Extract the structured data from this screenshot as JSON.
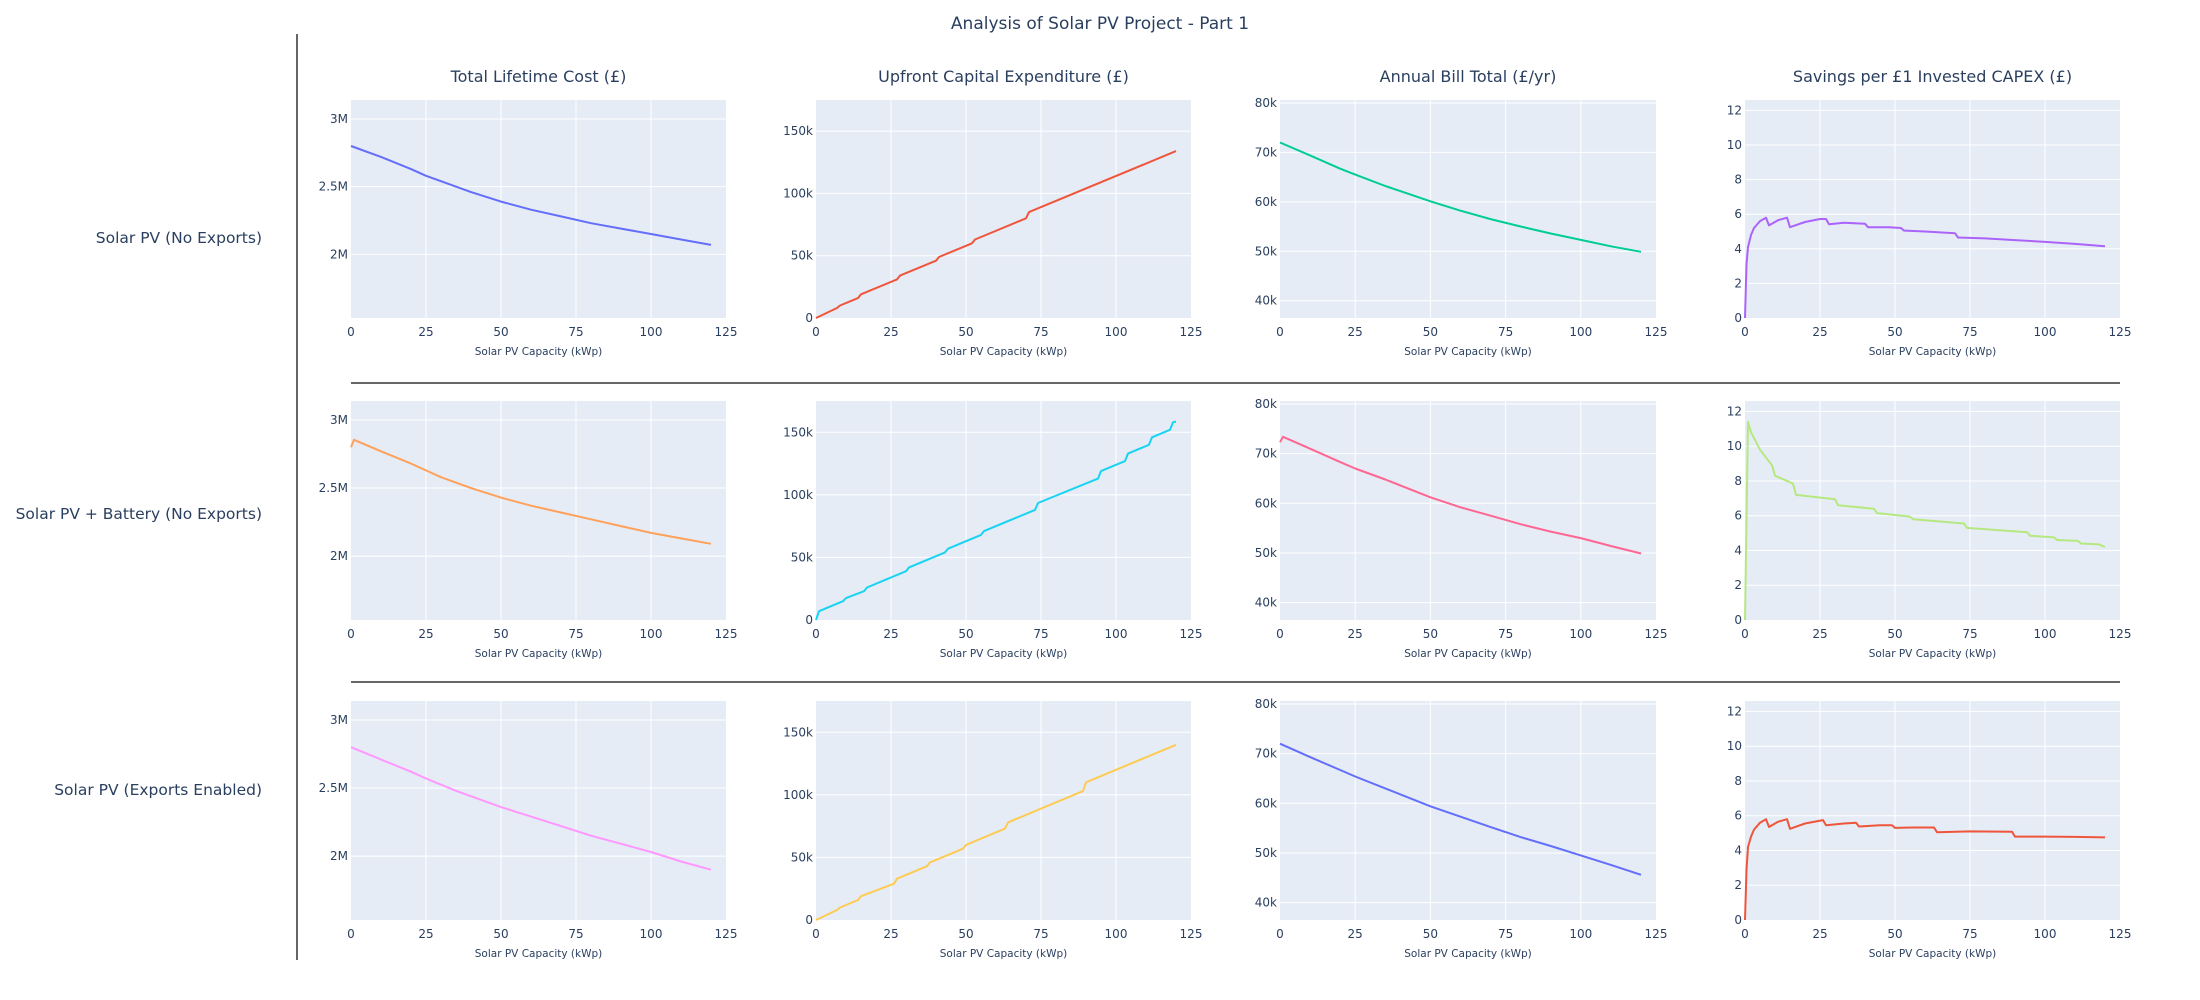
{
  "title": "Analysis of Solar PV Project - Part 1",
  "row_labels": [
    "Solar PV (No Exports)",
    "Solar PV + Battery (No Exports)",
    "Solar PV (Exports Enabled)"
  ],
  "column_titles": [
    "Total Lifetime Cost (£)",
    "Upfront Capital Expenditure (£)",
    "Annual Bill Total (£/yr)",
    "Savings per £1 Invested CAPEX (£)"
  ],
  "colors": {
    "plot_bg": "#e5ecf6",
    "grid": "#ffffff",
    "divider": "#666666",
    "text": "#2a3f5f"
  },
  "chart_data": [
    {
      "type": "line",
      "row": 0,
      "col": 0,
      "title": "Total Lifetime Cost (£)",
      "xlabel": "Solar PV Capacity (kWp)",
      "ylabel": "",
      "xlim": [
        0,
        125
      ],
      "ylim": [
        1530000,
        3140000
      ],
      "xticks": [
        0,
        25,
        50,
        75,
        100,
        125
      ],
      "xtick_labels": [
        "0",
        "25",
        "50",
        "75",
        "100",
        "125"
      ],
      "yticks": [
        2000000,
        2500000,
        3000000
      ],
      "ytick_labels": [
        "2M",
        "2.5M",
        "3M"
      ],
      "color": "#636efa",
      "x": [
        0,
        10,
        20,
        25,
        30,
        40,
        50,
        60,
        70,
        80,
        90,
        100,
        110,
        120
      ],
      "y": [
        2800000,
        2720000,
        2630000,
        2580000,
        2540000,
        2460000,
        2390000,
        2330000,
        2280000,
        2230000,
        2190000,
        2150000,
        2110000,
        2070000
      ]
    },
    {
      "type": "line",
      "row": 0,
      "col": 1,
      "title": "Upfront Capital Expenditure (£)",
      "xlabel": "Solar PV Capacity (kWp)",
      "ylabel": "",
      "xlim": [
        0,
        125
      ],
      "ylim": [
        0,
        175000
      ],
      "xticks": [
        0,
        25,
        50,
        75,
        100,
        125
      ],
      "xtick_labels": [
        "0",
        "25",
        "50",
        "75",
        "100",
        "125"
      ],
      "yticks": [
        0,
        50000,
        100000,
        150000
      ],
      "ytick_labels": [
        "0",
        "50k",
        "100k",
        "150k"
      ],
      "color": "#ef553b",
      "x": [
        0,
        7,
        8,
        14,
        15,
        27,
        28,
        40,
        41,
        52,
        53,
        70,
        71,
        120
      ],
      "y": [
        0,
        8000,
        10000,
        16000,
        19000,
        31000,
        34000,
        46000,
        49000,
        60000,
        63000,
        80000,
        85000,
        134000
      ]
    },
    {
      "type": "line",
      "row": 0,
      "col": 2,
      "title": "Annual Bill Total (£/yr)",
      "xlabel": "Solar PV Capacity (kWp)",
      "ylabel": "",
      "xlim": [
        0,
        125
      ],
      "ylim": [
        36500,
        80600
      ],
      "xticks": [
        0,
        25,
        50,
        75,
        100,
        125
      ],
      "xtick_labels": [
        "0",
        "25",
        "50",
        "75",
        "100",
        "125"
      ],
      "yticks": [
        40000,
        50000,
        60000,
        70000,
        80000
      ],
      "ytick_labels": [
        "40k",
        "50k",
        "60k",
        "70k",
        "80k"
      ],
      "color": "#00cc96",
      "x": [
        0,
        10,
        20,
        25,
        35,
        50,
        60,
        70,
        80,
        90,
        100,
        110,
        120
      ],
      "y": [
        72000,
        69400,
        66700,
        65500,
        63200,
        60100,
        58200,
        56500,
        55000,
        53600,
        52300,
        51000,
        49900
      ]
    },
    {
      "type": "line",
      "row": 0,
      "col": 3,
      "title": "Savings per £1 Invested CAPEX (£)",
      "xlabel": "Solar PV Capacity (kWp)",
      "ylabel": "",
      "xlim": [
        0,
        125
      ],
      "ylim": [
        0,
        12.6
      ],
      "xticks": [
        0,
        25,
        50,
        75,
        100,
        125
      ],
      "xtick_labels": [
        "0",
        "25",
        "50",
        "75",
        "100",
        "125"
      ],
      "yticks": [
        0,
        2,
        4,
        6,
        8,
        10,
        12
      ],
      "ytick_labels": [
        "0",
        "2",
        "4",
        "6",
        "8",
        "10",
        "12"
      ],
      "color": "#ab63fa",
      "x": [
        0,
        0.5,
        1,
        2,
        3,
        5,
        7,
        8,
        11,
        14,
        15,
        20,
        25,
        27,
        28,
        33,
        40,
        41,
        48,
        52,
        53,
        60,
        70,
        71,
        80,
        90,
        100,
        110,
        120
      ],
      "y": [
        0,
        3.1,
        4.1,
        4.8,
        5.2,
        5.6,
        5.8,
        5.35,
        5.65,
        5.8,
        5.25,
        5.55,
        5.72,
        5.72,
        5.42,
        5.5,
        5.45,
        5.25,
        5.25,
        5.2,
        5.05,
        5.0,
        4.9,
        4.65,
        4.6,
        4.5,
        4.4,
        4.28,
        4.15
      ]
    },
    {
      "type": "line",
      "row": 1,
      "col": 0,
      "title": "Total Lifetime Cost (£)",
      "xlabel": "Solar PV Capacity (kWp)",
      "ylabel": "",
      "xlim": [
        0,
        125
      ],
      "ylim": [
        1530000,
        3140000
      ],
      "xticks": [
        0,
        25,
        50,
        75,
        100,
        125
      ],
      "xtick_labels": [
        "0",
        "25",
        "50",
        "75",
        "100",
        "125"
      ],
      "yticks": [
        2000000,
        2500000,
        3000000
      ],
      "ytick_labels": [
        "2M",
        "2.5M",
        "3M"
      ],
      "color": "#ffa15a",
      "x": [
        0,
        1,
        10,
        20,
        25,
        30,
        40,
        50,
        60,
        70,
        80,
        90,
        100,
        110,
        120
      ],
      "y": [
        2800000,
        2855000,
        2770000,
        2680000,
        2630000,
        2580000,
        2500000,
        2430000,
        2370000,
        2320000,
        2270000,
        2220000,
        2170000,
        2130000,
        2090000
      ]
    },
    {
      "type": "line",
      "row": 1,
      "col": 1,
      "title": "Upfront Capital Expenditure (£)",
      "xlabel": "Solar PV Capacity (kWp)",
      "ylabel": "",
      "xlim": [
        0,
        125
      ],
      "ylim": [
        0,
        175000
      ],
      "xticks": [
        0,
        25,
        50,
        75,
        100,
        125
      ],
      "xtick_labels": [
        "0",
        "25",
        "50",
        "75",
        "100",
        "125"
      ],
      "yticks": [
        0,
        50000,
        100000,
        150000
      ],
      "ytick_labels": [
        "0",
        "50k",
        "100k",
        "150k"
      ],
      "color": "#19d3f3",
      "x": [
        0,
        1,
        9,
        10,
        16,
        17,
        30,
        31,
        43,
        44,
        55,
        56,
        73,
        74,
        94,
        95,
        103,
        104,
        111,
        112,
        118,
        119,
        120
      ],
      "y": [
        0,
        7000,
        15000,
        17500,
        23000,
        26000,
        39000,
        42000,
        54000,
        57000,
        68000,
        71000,
        88000,
        93500,
        113000,
        119000,
        127000,
        133000,
        140000,
        146000,
        152000,
        158000,
        158500
      ]
    },
    {
      "type": "line",
      "row": 1,
      "col": 2,
      "title": "Annual Bill Total (£/yr)",
      "xlabel": "Solar PV Capacity (kWp)",
      "ylabel": "",
      "xlim": [
        0,
        125
      ],
      "ylim": [
        36500,
        80600
      ],
      "xticks": [
        0,
        25,
        50,
        75,
        100,
        125
      ],
      "xtick_labels": [
        "0",
        "25",
        "50",
        "75",
        "100",
        "125"
      ],
      "yticks": [
        40000,
        50000,
        60000,
        70000,
        80000
      ],
      "ytick_labels": [
        "40k",
        "50k",
        "60k",
        "70k",
        "80k"
      ],
      "color": "#ff6692",
      "x": [
        0,
        1,
        10,
        20,
        25,
        35,
        50,
        60,
        70,
        80,
        90,
        100,
        110,
        120
      ],
      "y": [
        72300,
        73400,
        71000,
        68300,
        67000,
        64800,
        61200,
        59200,
        57500,
        55800,
        54300,
        53000,
        51400,
        49900
      ]
    },
    {
      "type": "line",
      "row": 1,
      "col": 3,
      "title": "Savings per £1 Invested CAPEX (£)",
      "xlabel": "Solar PV Capacity (kWp)",
      "ylabel": "",
      "xlim": [
        0,
        125
      ],
      "ylim": [
        0,
        12.6
      ],
      "xticks": [
        0,
        25,
        50,
        75,
        100,
        125
      ],
      "xtick_labels": [
        "0",
        "25",
        "50",
        "75",
        "100",
        "125"
      ],
      "yticks": [
        0,
        2,
        4,
        6,
        8,
        10,
        12
      ],
      "ytick_labels": [
        "0",
        "2",
        "4",
        "6",
        "8",
        "10",
        "12"
      ],
      "color": "#b6e880",
      "x": [
        0,
        1,
        2,
        5,
        9,
        10,
        16,
        17,
        30,
        31,
        43,
        44,
        55,
        56,
        73,
        74,
        94,
        95,
        103,
        104,
        111,
        112,
        118,
        120
      ],
      "y": [
        0,
        11.4,
        10.8,
        9.8,
        8.9,
        8.3,
        7.85,
        7.2,
        6.95,
        6.6,
        6.4,
        6.15,
        5.95,
        5.8,
        5.55,
        5.3,
        5.05,
        4.85,
        4.75,
        4.6,
        4.55,
        4.4,
        4.35,
        4.2
      ]
    },
    {
      "type": "line",
      "row": 2,
      "col": 0,
      "title": "Total Lifetime Cost (£)",
      "xlabel": "Solar PV Capacity (kWp)",
      "ylabel": "",
      "xlim": [
        0,
        125
      ],
      "ylim": [
        1530000,
        3140000
      ],
      "xticks": [
        0,
        25,
        50,
        75,
        100,
        125
      ],
      "xtick_labels": [
        "0",
        "25",
        "50",
        "75",
        "100",
        "125"
      ],
      "yticks": [
        2000000,
        2500000,
        3000000
      ],
      "ytick_labels": [
        "2M",
        "2.5M",
        "3M"
      ],
      "color": "#ff97ff",
      "x": [
        0,
        10,
        20,
        25,
        35,
        50,
        60,
        70,
        80,
        90,
        100,
        110,
        120
      ],
      "y": [
        2800000,
        2710000,
        2620000,
        2570000,
        2480000,
        2360000,
        2290000,
        2220000,
        2150000,
        2090000,
        2030000,
        1960000,
        1900000
      ]
    },
    {
      "type": "line",
      "row": 2,
      "col": 1,
      "title": "Upfront Capital Expenditure (£)",
      "xlabel": "Solar PV Capacity (kWp)",
      "ylabel": "",
      "xlim": [
        0,
        125
      ],
      "ylim": [
        0,
        175000
      ],
      "xticks": [
        0,
        25,
        50,
        75,
        100,
        125
      ],
      "xtick_labels": [
        "0",
        "25",
        "50",
        "75",
        "100",
        "125"
      ],
      "yticks": [
        0,
        50000,
        100000,
        150000
      ],
      "ytick_labels": [
        "0",
        "50k",
        "100k",
        "150k"
      ],
      "color": "#fecb52",
      "x": [
        0,
        7,
        8,
        14,
        15,
        26,
        27,
        37,
        38,
        49,
        50,
        63,
        64,
        89,
        90,
        120
      ],
      "y": [
        0,
        8000,
        10000,
        16000,
        19000,
        29000,
        33000,
        43000,
        46000,
        57000,
        60000,
        73000,
        78000,
        103000,
        110000,
        140000
      ]
    },
    {
      "type": "line",
      "row": 2,
      "col": 2,
      "title": "Annual Bill Total (£/yr)",
      "xlabel": "Solar PV Capacity (kWp)",
      "ylabel": "",
      "xlim": [
        0,
        125
      ],
      "ylim": [
        36500,
        80600
      ],
      "xticks": [
        0,
        25,
        50,
        75,
        100,
        125
      ],
      "xtick_labels": [
        "0",
        "25",
        "50",
        "75",
        "100",
        "125"
      ],
      "yticks": [
        40000,
        50000,
        60000,
        70000,
        80000
      ],
      "ytick_labels": [
        "40k",
        "50k",
        "60k",
        "70k",
        "80k"
      ],
      "color": "#636efa",
      "x": [
        0,
        10,
        20,
        25,
        35,
        50,
        60,
        70,
        80,
        90,
        100,
        110,
        120
      ],
      "y": [
        72000,
        69300,
        66700,
        65400,
        63000,
        59400,
        57300,
        55200,
        53200,
        51400,
        49500,
        47600,
        45600
      ]
    },
    {
      "type": "line",
      "row": 2,
      "col": 3,
      "title": "Savings per £1 Invested CAPEX (£)",
      "xlabel": "Solar PV Capacity (kWp)",
      "ylabel": "",
      "xlim": [
        0,
        125
      ],
      "ylim": [
        0,
        12.6
      ],
      "xticks": [
        0,
        25,
        50,
        75,
        100,
        125
      ],
      "xtick_labels": [
        "0",
        "25",
        "50",
        "75",
        "100",
        "125"
      ],
      "yticks": [
        0,
        2,
        4,
        6,
        8,
        10,
        12
      ],
      "ytick_labels": [
        "0",
        "2",
        "4",
        "6",
        "8",
        "10",
        "12"
      ],
      "color": "#ef553b",
      "x": [
        0,
        0.5,
        1,
        2,
        3,
        5,
        7,
        8,
        11,
        14,
        15,
        20,
        26,
        27,
        33,
        37,
        38,
        45,
        49,
        50,
        56,
        63,
        64,
        75,
        89,
        90,
        100,
        110,
        120
      ],
      "y": [
        0,
        2.9,
        4.2,
        4.8,
        5.2,
        5.6,
        5.8,
        5.35,
        5.65,
        5.8,
        5.25,
        5.55,
        5.75,
        5.45,
        5.55,
        5.6,
        5.38,
        5.45,
        5.45,
        5.3,
        5.32,
        5.32,
        5.05,
        5.1,
        5.08,
        4.8,
        4.8,
        4.78,
        4.75
      ]
    }
  ]
}
